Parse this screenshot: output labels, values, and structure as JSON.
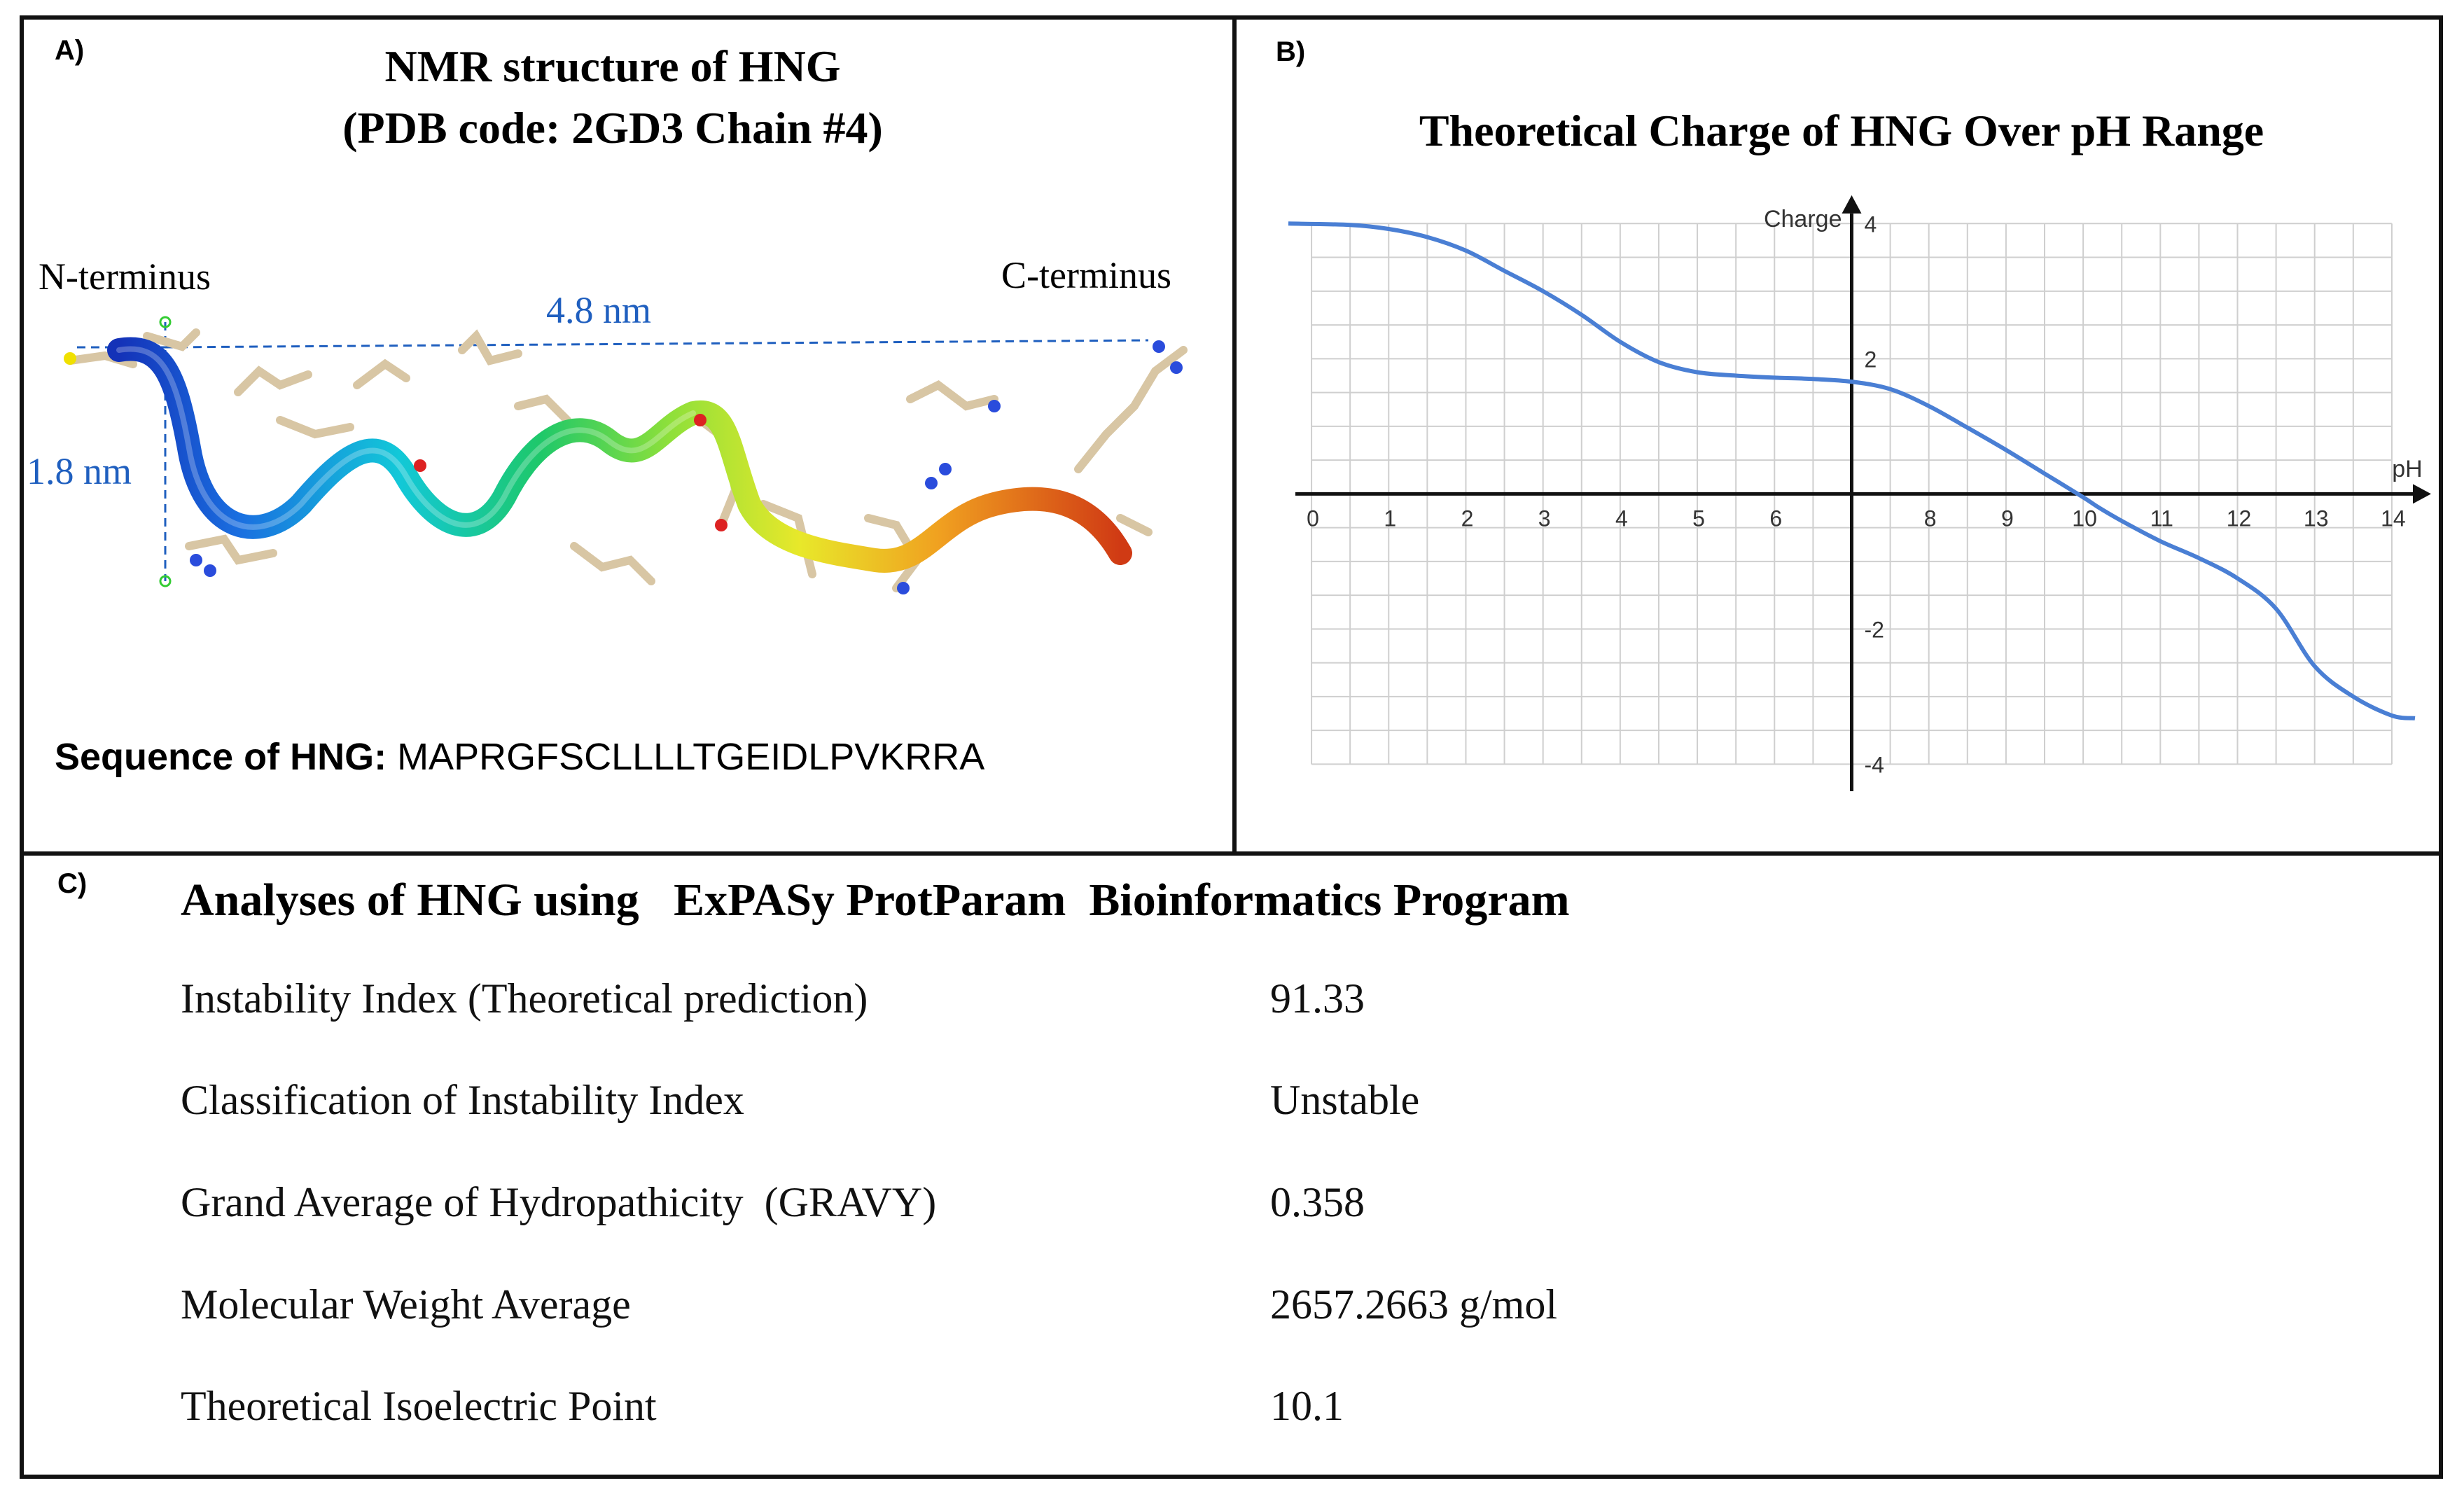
{
  "panel_a": {
    "label": "A)",
    "title_line1": "NMR structure of HNG",
    "title_line2": "(PDB code: 2GD3 Chain #4)",
    "n_terminus": "N-terminus",
    "c_terminus": "C-terminus",
    "length_label": "4.8 nm",
    "height_label": "1.8 nm",
    "sequence_label": "Sequence of HNG:",
    "sequence": "MAPRGFSCLLLLTGEIDLPVKRRA"
  },
  "panel_b": {
    "label": "B)",
    "title": "Theoretical Charge of HNG  Over pH Range",
    "y_axis_label": "Charge",
    "x_axis_label": "pH"
  },
  "chart_data": {
    "type": "line",
    "title": "Theoretical Charge of HNG  Over pH Range",
    "xlabel": "pH",
    "ylabel": "Charge",
    "xlim": [
      -0.3,
      14.4
    ],
    "ylim": [
      -4.4,
      4.2
    ],
    "x_tick_labels": [
      "0",
      "1",
      "2",
      "3",
      "4",
      "5",
      "6",
      "8",
      "9",
      "10",
      "11",
      "12",
      "13",
      "14"
    ],
    "x_tick_values": [
      0,
      1,
      2,
      3,
      4,
      5,
      6,
      8,
      9,
      10,
      11,
      12,
      13,
      14
    ],
    "y_tick_labels": [
      "4",
      "2",
      "-2",
      "-4"
    ],
    "y_tick_values": [
      4,
      2,
      -2,
      -4
    ],
    "grid": true,
    "series": [
      {
        "name": "Charge",
        "color": "#4a7fd4",
        "x": [
          -0.3,
          0.5,
          1.0,
          1.5,
          2.0,
          2.5,
          3.0,
          3.5,
          4.0,
          4.5,
          5.0,
          5.5,
          6.0,
          6.5,
          7.0,
          7.5,
          8.0,
          8.5,
          9.0,
          9.5,
          10.0,
          10.2,
          10.5,
          11.0,
          11.5,
          12.0,
          12.5,
          13.0,
          13.5,
          14.0,
          14.3
        ],
        "y": [
          4.0,
          3.98,
          3.92,
          3.8,
          3.6,
          3.3,
          3.0,
          2.65,
          2.25,
          1.95,
          1.8,
          1.75,
          1.72,
          1.7,
          1.66,
          1.55,
          1.3,
          0.98,
          0.65,
          0.3,
          -0.05,
          -0.2,
          -0.4,
          -0.7,
          -0.95,
          -1.25,
          -1.7,
          -2.55,
          -3.0,
          -3.28,
          -3.32
        ]
      }
    ]
  },
  "panel_c": {
    "label": "C)",
    "title": "Analyses of HNG using   ExPASy ProtParam  Bioinformatics Program",
    "rows": [
      {
        "label": "Instability Index (Theoretical prediction)",
        "value": "91.33"
      },
      {
        "label": "Classification of Instability Index",
        "value": "Unstable"
      },
      {
        "label": "Grand Average of Hydropathicity  (GRAVY)",
        "value": "0.358"
      },
      {
        "label": "Molecular Weight Average",
        "value": "2657.2663 g/mol"
      },
      {
        "label": "Theoretical Isoelectric Point",
        "value": "10.1"
      }
    ]
  }
}
